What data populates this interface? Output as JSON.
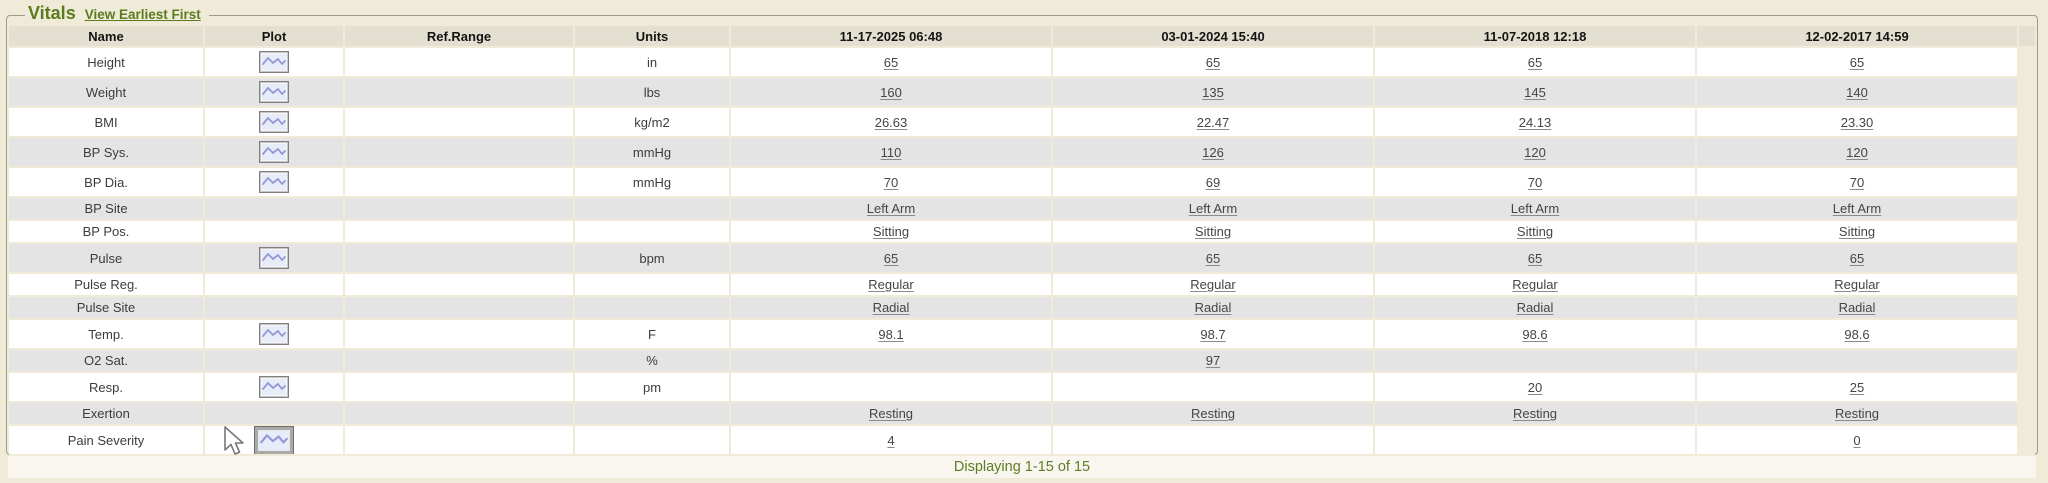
{
  "panel": {
    "title": "Vitals",
    "view_link": "View Earliest First"
  },
  "table": {
    "headers": [
      "Name",
      "Plot",
      "Ref.Range",
      "Units",
      "11-17-2025 06:48",
      "03-01-2024 15:40",
      "11-07-2018 12:18",
      "12-02-2017 14:59"
    ],
    "rows": [
      {
        "name": "Height",
        "plot": true,
        "plot_large": false,
        "ref_range": "",
        "units": "in",
        "values": [
          "65",
          "65",
          "65",
          "65"
        ]
      },
      {
        "name": "Weight",
        "plot": true,
        "plot_large": false,
        "ref_range": "",
        "units": "lbs",
        "values": [
          "160",
          "135",
          "145",
          "140"
        ]
      },
      {
        "name": "BMI",
        "plot": true,
        "plot_large": false,
        "ref_range": "",
        "units": "kg/m2",
        "values": [
          "26.63",
          "22.47",
          "24.13",
          "23.30"
        ]
      },
      {
        "name": "BP Sys.",
        "plot": true,
        "plot_large": false,
        "ref_range": "",
        "units": "mmHg",
        "values": [
          "110",
          "126",
          "120",
          "120"
        ]
      },
      {
        "name": "BP Dia.",
        "plot": true,
        "plot_large": false,
        "ref_range": "",
        "units": "mmHg",
        "values": [
          "70",
          "69",
          "70",
          "70"
        ]
      },
      {
        "name": "BP Site",
        "plot": false,
        "plot_large": false,
        "ref_range": "",
        "units": "",
        "values": [
          "Left Arm",
          "Left Arm",
          "Left Arm",
          "Left Arm"
        ]
      },
      {
        "name": "BP Pos.",
        "plot": false,
        "plot_large": false,
        "ref_range": "",
        "units": "",
        "values": [
          "Sitting",
          "Sitting",
          "Sitting",
          "Sitting"
        ]
      },
      {
        "name": "Pulse",
        "plot": true,
        "plot_large": false,
        "ref_range": "",
        "units": "bpm",
        "values": [
          "65",
          "65",
          "65",
          "65"
        ]
      },
      {
        "name": "Pulse Reg.",
        "plot": false,
        "plot_large": false,
        "ref_range": "",
        "units": "",
        "values": [
          "Regular",
          "Regular",
          "Regular",
          "Regular"
        ]
      },
      {
        "name": "Pulse Site",
        "plot": false,
        "plot_large": false,
        "ref_range": "",
        "units": "",
        "values": [
          "Radial",
          "Radial",
          "Radial",
          "Radial"
        ]
      },
      {
        "name": "Temp.",
        "plot": true,
        "plot_large": false,
        "ref_range": "",
        "units": "F",
        "values": [
          "98.1",
          "98.7",
          "98.6",
          "98.6"
        ]
      },
      {
        "name": "O2 Sat.",
        "plot": false,
        "plot_large": false,
        "ref_range": "",
        "units": "%",
        "values": [
          "",
          "97",
          "",
          ""
        ]
      },
      {
        "name": "Resp.",
        "plot": true,
        "plot_large": false,
        "ref_range": "",
        "units": "pm",
        "values": [
          "",
          "",
          "20",
          "25"
        ]
      },
      {
        "name": "Exertion",
        "plot": false,
        "plot_large": false,
        "ref_range": "",
        "units": "",
        "values": [
          "Resting",
          "Resting",
          "Resting",
          "Resting"
        ]
      },
      {
        "name": "Pain Severity",
        "plot": true,
        "plot_large": true,
        "ref_range": "",
        "units": "",
        "values": [
          "4",
          "",
          "",
          "0"
        ]
      }
    ],
    "footer": "Displaying 1-15 of 15"
  },
  "colors": {
    "page_background": "#f0ead9",
    "header_row": "#e4e0d1",
    "alt_row": "#e4e4e4",
    "accent_green": "#5b7b1d",
    "footer_green": "#5f7d24",
    "plot_icon_line": "#9596d7",
    "plot_icon_bg": "#e6edf9"
  },
  "icons": {
    "plot_button": "line-chart-icon",
    "cursor": "arrow-cursor"
  }
}
